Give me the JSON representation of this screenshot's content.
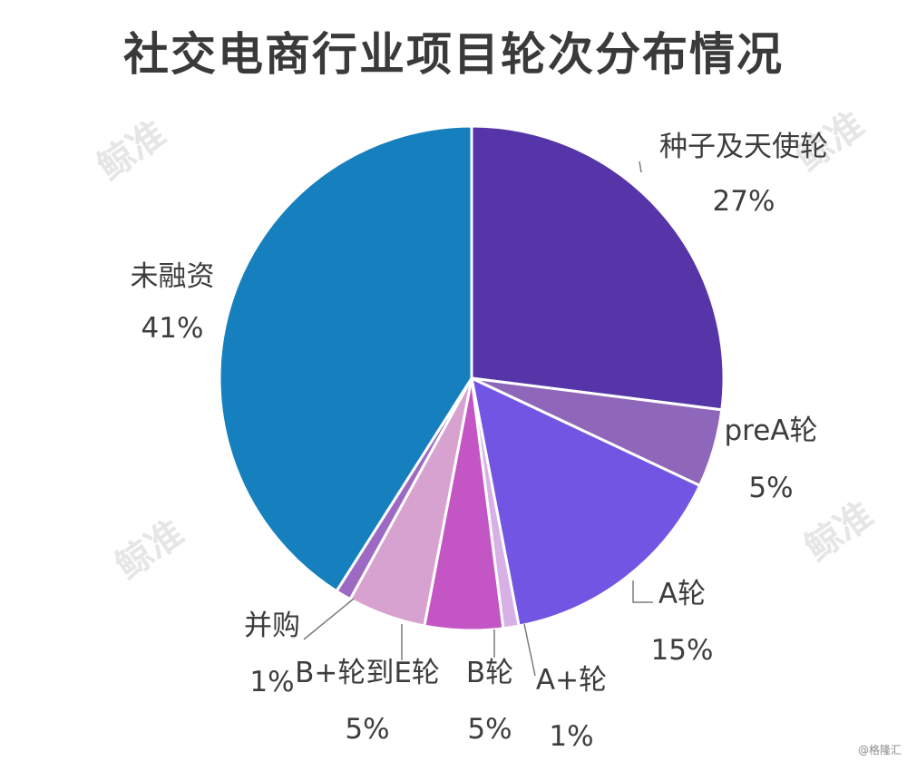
{
  "chart_data": {
    "type": "pie",
    "title": "社交电商行业项目轮次分布情况",
    "slices": [
      {
        "label": "种子及天使轮",
        "value": 27,
        "display": "27%",
        "color": "#5635a8"
      },
      {
        "label": "preA轮",
        "value": 5,
        "display": "5%",
        "color": "#8f67ba"
      },
      {
        "label": "A轮",
        "value": 15,
        "display": "15%",
        "color": "#7255e3"
      },
      {
        "label": "A+轮",
        "value": 1,
        "display": "1%",
        "color": "#d7b0e6"
      },
      {
        "label": "B轮",
        "value": 5,
        "display": "5%",
        "color": "#c455c4"
      },
      {
        "label": "B+轮到E轮",
        "value": 5,
        "display": "5%",
        "color": "#d8a2d0"
      },
      {
        "label": "并购",
        "value": 1,
        "display": "1%",
        "color": "#9c6ac2"
      },
      {
        "label": "未融资",
        "value": 41,
        "display": "41%",
        "color": "#1680be"
      }
    ]
  },
  "watermark": "鲸准",
  "source_credit": "@格隆汇"
}
